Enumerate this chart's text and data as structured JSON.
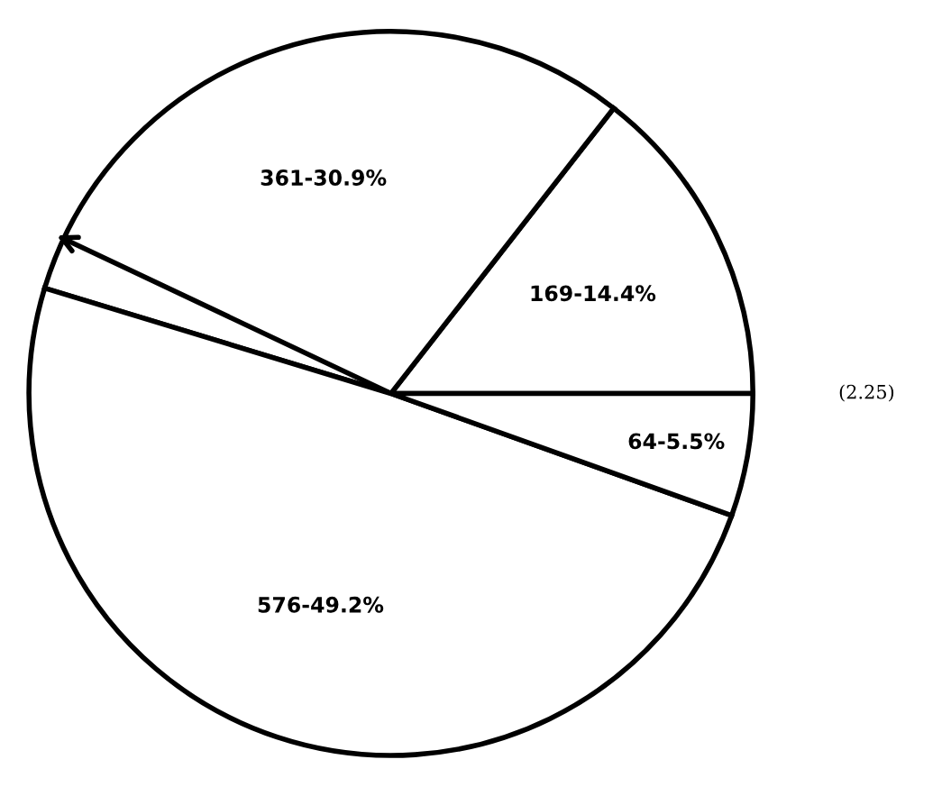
{
  "chart_data": {
    "type": "pie",
    "categories": [
      null,
      null,
      null,
      null
    ],
    "values": [
      169,
      361,
      576,
      64
    ],
    "value_labels": [
      "169-14.4%",
      "361-30.9%",
      "576-49.2%",
      "64-5.5%"
    ],
    "colors": [
      "#ffffff",
      "#ffffff",
      "#ffffff",
      "#ffffff"
    ],
    "annotations": [
      "(2.25)"
    ]
  }
}
